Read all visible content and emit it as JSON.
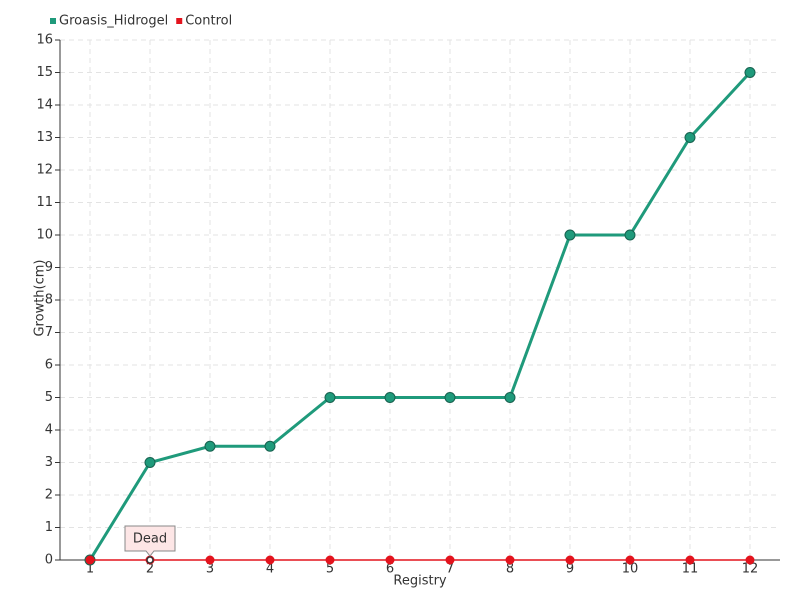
{
  "chart_data": {
    "type": "line",
    "x_label": "Registry",
    "y_label": "Growth(cm)",
    "categories": [
      "1",
      "2",
      "3",
      "4",
      "5",
      "6",
      "7",
      "8",
      "9",
      "10",
      "11",
      "12"
    ],
    "series": [
      {
        "name": "Groasis_Hidrogel",
        "color": "#1f9a7b",
        "values": [
          0,
          3,
          3.5,
          3.5,
          5,
          5,
          5,
          5,
          10,
          10,
          13,
          15
        ]
      },
      {
        "name": "Control",
        "color": "#e3131d",
        "values": [
          0,
          0,
          0,
          0,
          0,
          0,
          0,
          0,
          0,
          0,
          0,
          0
        ]
      }
    ],
    "annotation": {
      "text": "Dead",
      "category": "2"
    },
    "ylim": [
      0,
      16
    ],
    "yticks": [
      0,
      1,
      2,
      3,
      4,
      5,
      6,
      7,
      8,
      9,
      10,
      11,
      12,
      13,
      14,
      15,
      16
    ],
    "grid": true,
    "legend": "top-left"
  }
}
